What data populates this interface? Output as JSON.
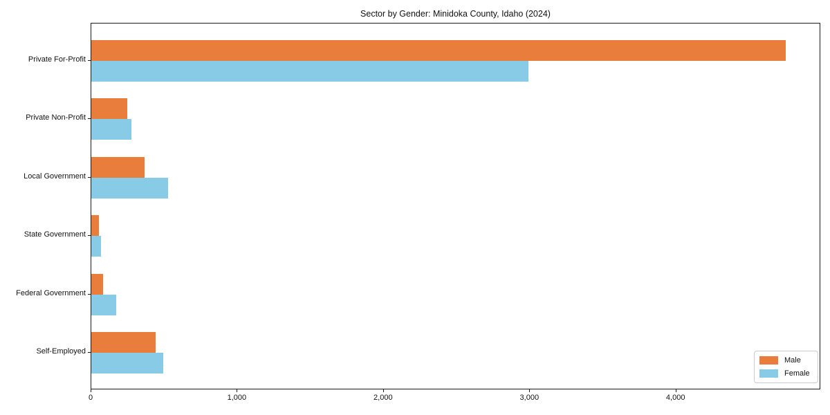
{
  "title": "Sector by Gender: Minidoka County, Idaho (2024)",
  "chart_data": {
    "type": "bar",
    "orientation": "horizontal",
    "title": "Sector by Gender: Minidoka County, Idaho (2024)",
    "categories": [
      "Private For-Profit",
      "Private Non-Profit",
      "Local Government",
      "State Government",
      "Federal Government",
      "Self-Employed"
    ],
    "series": [
      {
        "name": "Male",
        "color": "#e87d3c",
        "values": [
          4747,
          246,
          364,
          52,
          80,
          440
        ]
      },
      {
        "name": "Female",
        "color": "#87cbe6",
        "values": [
          2988,
          274,
          525,
          64,
          170,
          492
        ]
      }
    ],
    "xlabel": "",
    "ylabel": "",
    "xlim": [
      0,
      4990
    ],
    "x_ticks": [
      0,
      1000,
      2000,
      3000,
      4000
    ],
    "x_tick_labels": [
      "0",
      "1,000",
      "2,000",
      "3,000",
      "4,000"
    ],
    "grid": false,
    "legend": {
      "position": "lower right",
      "entries": [
        "Male",
        "Female"
      ]
    }
  }
}
